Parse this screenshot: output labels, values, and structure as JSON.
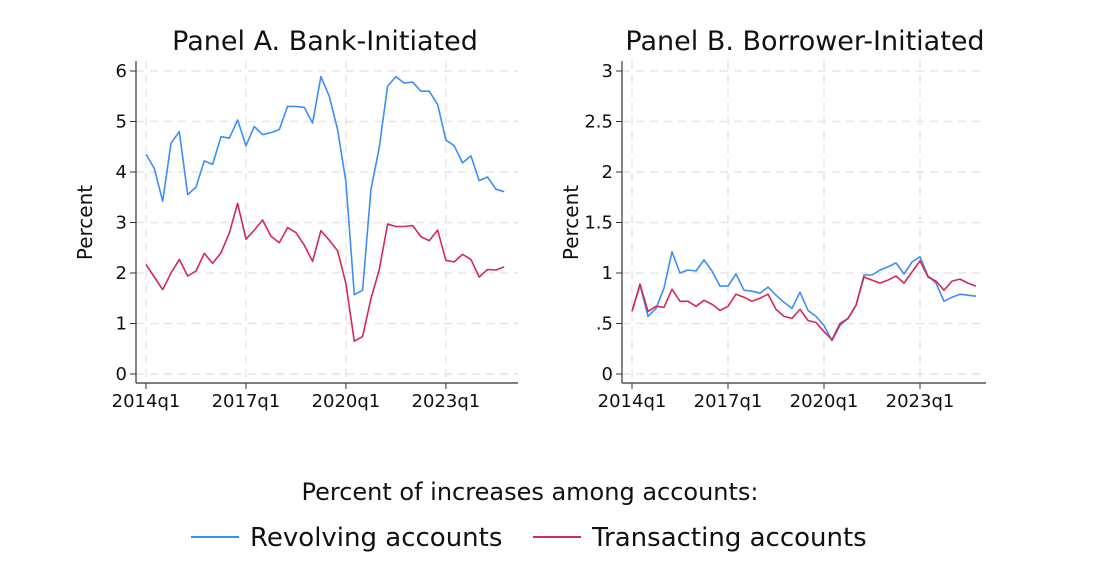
{
  "chart_data": [
    {
      "type": "line",
      "title": "Panel A. Bank-Initiated",
      "xlabel": "",
      "ylabel": "Percent",
      "ylim": [
        0,
        6
      ],
      "yticks": [
        0,
        1,
        2,
        3,
        4,
        5,
        6
      ],
      "ytick_labels": [
        "0",
        "1",
        "2",
        "3",
        "4",
        "5",
        "6"
      ],
      "xtick_labels": [
        "2014q1",
        "2017q1",
        "2020q1",
        "2023q1"
      ],
      "grid": true,
      "x": [
        "2014q1",
        "2014q2",
        "2014q3",
        "2014q4",
        "2015q1",
        "2015q2",
        "2015q3",
        "2015q4",
        "2016q1",
        "2016q2",
        "2016q3",
        "2016q4",
        "2017q1",
        "2017q2",
        "2017q3",
        "2017q4",
        "2018q1",
        "2018q2",
        "2018q3",
        "2018q4",
        "2019q1",
        "2019q2",
        "2019q3",
        "2019q4",
        "2020q1",
        "2020q2",
        "2020q3",
        "2020q4",
        "2021q1",
        "2021q2",
        "2021q3",
        "2021q4",
        "2022q1",
        "2022q2",
        "2022q3",
        "2022q4",
        "2023q1",
        "2023q2",
        "2023q3",
        "2023q4",
        "2024q1",
        "2024q2",
        "2024q3",
        "2024q4"
      ],
      "series": [
        {
          "name": "Revolving accounts",
          "color": "#3d8ef7",
          "values": [
            4.35,
            4.07,
            3.42,
            4.57,
            4.8,
            3.55,
            3.7,
            4.22,
            4.15,
            4.7,
            4.67,
            5.03,
            4.52,
            4.9,
            4.74,
            4.78,
            4.84,
            5.3,
            5.3,
            5.28,
            4.97,
            5.89,
            5.5,
            4.84,
            3.81,
            1.57,
            1.66,
            3.65,
            4.48,
            5.7,
            5.89,
            5.76,
            5.78,
            5.6,
            5.6,
            5.34,
            4.63,
            4.52,
            4.18,
            4.32,
            3.83,
            3.9,
            3.66,
            3.61
          ]
        },
        {
          "name": "Transacting accounts",
          "color": "#d6275a",
          "values": [
            2.17,
            1.92,
            1.67,
            2.0,
            2.27,
            1.94,
            2.04,
            2.39,
            2.19,
            2.4,
            2.79,
            3.38,
            2.67,
            2.85,
            3.05,
            2.73,
            2.6,
            2.9,
            2.8,
            2.55,
            2.23,
            2.84,
            2.65,
            2.44,
            1.79,
            0.65,
            0.74,
            1.49,
            2.06,
            2.97,
            2.92,
            2.92,
            2.94,
            2.72,
            2.64,
            2.85,
            2.25,
            2.22,
            2.37,
            2.27,
            1.92,
            2.07,
            2.06,
            2.12
          ]
        }
      ]
    },
    {
      "type": "line",
      "title": "Panel B. Borrower-Initiated",
      "xlabel": "",
      "ylabel": "Percent",
      "ylim": [
        0,
        3
      ],
      "yticks": [
        0,
        0.5,
        1,
        1.5,
        2,
        2.5,
        3
      ],
      "ytick_labels": [
        "0",
        ".5",
        "1",
        "1.5",
        "2",
        "2.5",
        "3"
      ],
      "xtick_labels": [
        "2014q1",
        "2017q1",
        "2020q1",
        "2023q1"
      ],
      "grid": true,
      "x": [
        "2014q1",
        "2014q2",
        "2014q3",
        "2014q4",
        "2015q1",
        "2015q2",
        "2015q3",
        "2015q4",
        "2016q1",
        "2016q2",
        "2016q3",
        "2016q4",
        "2017q1",
        "2017q2",
        "2017q3",
        "2017q4",
        "2018q1",
        "2018q2",
        "2018q3",
        "2018q4",
        "2019q1",
        "2019q2",
        "2019q3",
        "2019q4",
        "2020q1",
        "2020q2",
        "2020q3",
        "2020q4",
        "2021q1",
        "2021q2",
        "2021q3",
        "2021q4",
        "2022q1",
        "2022q2",
        "2022q3",
        "2022q4",
        "2023q1",
        "2023q2",
        "2023q3",
        "2023q4",
        "2024q1",
        "2024q2",
        "2024q3",
        "2024q4"
      ],
      "series": [
        {
          "name": "Revolving accounts",
          "color": "#3d8ef7",
          "values": [
            0.62,
            0.88,
            0.57,
            0.65,
            0.85,
            1.21,
            1.0,
            1.03,
            1.02,
            1.13,
            1.02,
            0.87,
            0.87,
            0.99,
            0.83,
            0.82,
            0.8,
            0.86,
            0.78,
            0.71,
            0.65,
            0.81,
            0.63,
            0.57,
            0.48,
            0.33,
            0.48,
            0.55,
            0.68,
            0.98,
            0.98,
            1.03,
            1.06,
            1.1,
            0.99,
            1.11,
            1.16,
            0.97,
            0.9,
            0.72,
            0.76,
            0.79,
            0.78,
            0.77
          ]
        },
        {
          "name": "Transacting accounts",
          "color": "#d6275a",
          "values": [
            0.62,
            0.89,
            0.62,
            0.67,
            0.66,
            0.84,
            0.72,
            0.72,
            0.67,
            0.73,
            0.69,
            0.63,
            0.67,
            0.79,
            0.76,
            0.72,
            0.75,
            0.79,
            0.64,
            0.57,
            0.55,
            0.64,
            0.53,
            0.51,
            0.42,
            0.34,
            0.5,
            0.55,
            0.68,
            0.96,
            0.93,
            0.9,
            0.93,
            0.97,
            0.9,
            1.01,
            1.12,
            0.96,
            0.92,
            0.83,
            0.92,
            0.94,
            0.9,
            0.87
          ]
        }
      ]
    }
  ],
  "legend": {
    "title": "Percent of increases among accounts:",
    "placement": "bottom",
    "items": [
      {
        "label": "Revolving accounts",
        "color": "#3d8ef7"
      },
      {
        "label": "Transacting accounts",
        "color": "#d6275a"
      }
    ]
  }
}
